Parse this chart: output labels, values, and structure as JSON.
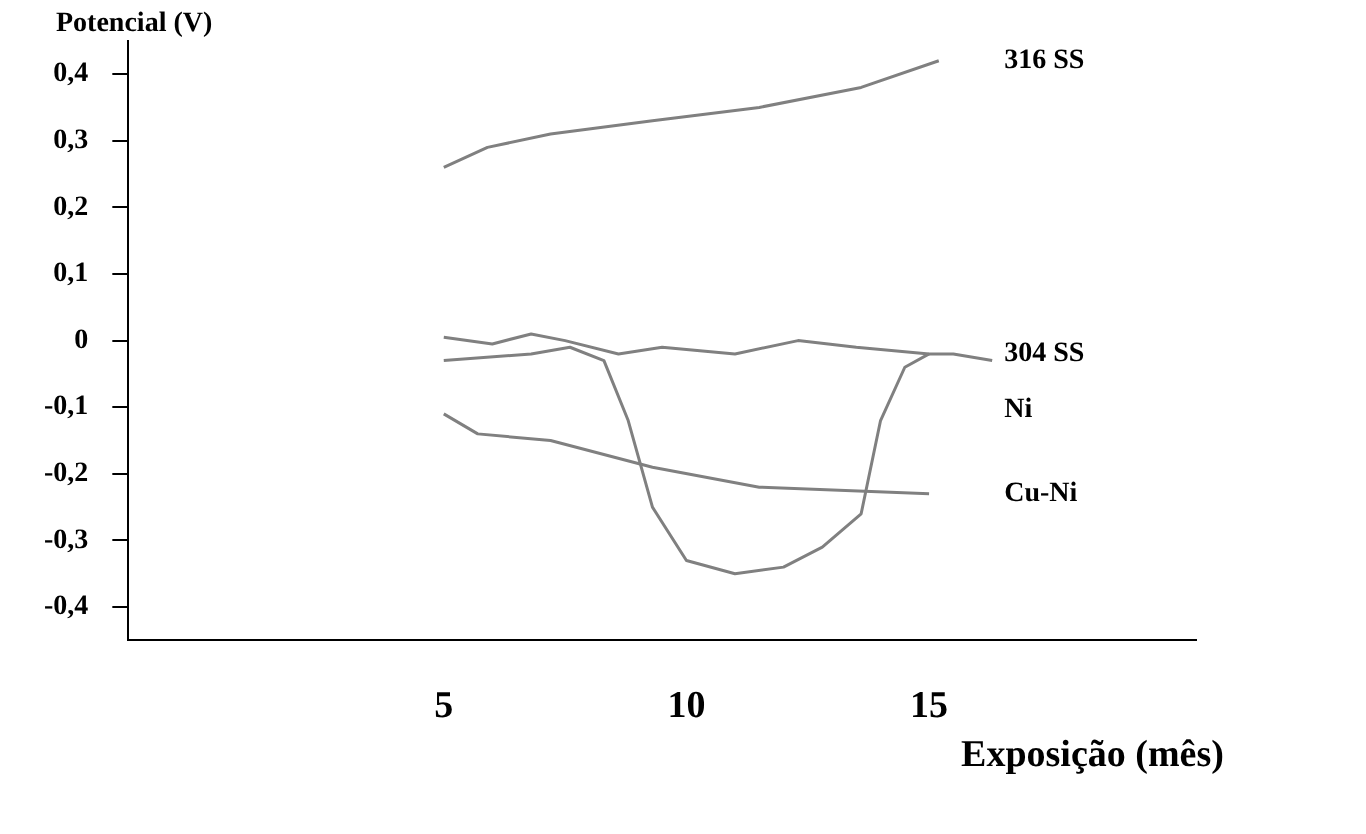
{
  "chart_data": {
    "type": "line",
    "xlabel": "Exposição (mês)",
    "ylabel": "Potencial (V)",
    "xlim": [
      -1.5,
      20.5
    ],
    "xticks": [
      5,
      10,
      15
    ],
    "ylim": [
      -0.45,
      0.45
    ],
    "yticks": [
      {
        "value": 0.4,
        "label": "0,4"
      },
      {
        "value": 0.3,
        "label": "0,3"
      },
      {
        "value": 0.2,
        "label": "0,2"
      },
      {
        "value": 0.1,
        "label": "0,1"
      },
      {
        "value": 0,
        "label": "0"
      },
      {
        "value": -0.1,
        "label": "-0,1"
      },
      {
        "value": -0.2,
        "label": "-0,2"
      },
      {
        "value": -0.3,
        "label": "-0,3"
      },
      {
        "value": -0.4,
        "label": "-0,4"
      }
    ],
    "grid": false,
    "legend": false,
    "marker": "none",
    "line_style": "solid",
    "series": [
      {
        "name": "316 SS",
        "color": "#808080",
        "x": [
          5,
          5.9,
          7.2,
          9.3,
          11.5,
          13.6,
          15.2
        ],
        "values": [
          0.26,
          0.29,
          0.31,
          0.33,
          0.35,
          0.38,
          0.42
        ]
      },
      {
        "name": "Ni",
        "color": "#808080",
        "x": [
          5,
          6,
          6.8,
          7.5,
          8.6,
          9.5,
          11,
          12.3,
          13.5,
          15,
          15.5,
          16.3
        ],
        "values": [
          0.005,
          -0.005,
          0.01,
          0,
          -0.02,
          -0.01,
          -0.02,
          0,
          -0.01,
          -0.02,
          -0.02,
          -0.03
        ]
      },
      {
        "name": "304 SS",
        "color": "#808080",
        "x": [
          5,
          6.8,
          7.6,
          8.3,
          8.8,
          9.3,
          10,
          11,
          12,
          12.8,
          13.6,
          14,
          14.5,
          15
        ],
        "values": [
          -0.03,
          -0.02,
          -0.01,
          -0.03,
          -0.12,
          -0.25,
          -0.33,
          -0.35,
          -0.34,
          -0.31,
          -0.26,
          -0.12,
          -0.04,
          -0.02
        ]
      },
      {
        "name": "Cu-Ni",
        "color": "#808080",
        "x": [
          5,
          5.7,
          7.2,
          9.3,
          11.5,
          15
        ],
        "values": [
          -0.11,
          -0.14,
          -0.15,
          -0.19,
          -0.22,
          -0.23
        ]
      }
    ]
  }
}
